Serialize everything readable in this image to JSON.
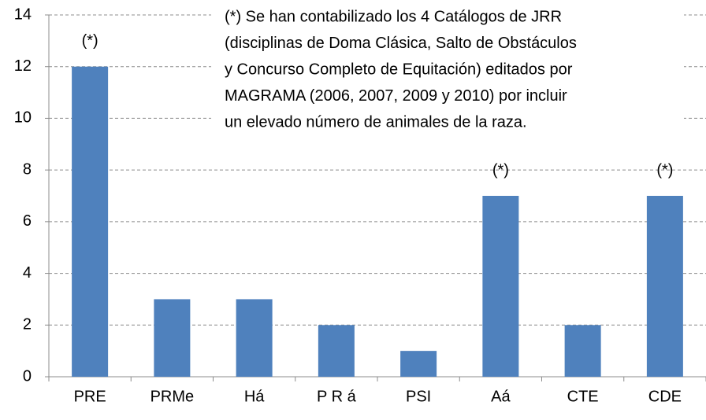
{
  "chart_data": {
    "type": "bar",
    "categories": [
      "PRE",
      "PRMe",
      "Há",
      "P R á",
      "PSI",
      "Aá",
      "CTE",
      "CDE"
    ],
    "values": [
      12,
      3,
      3,
      2,
      1,
      7,
      2,
      7
    ],
    "color": "#4f81bd",
    "ylim": [
      0,
      14
    ],
    "yticks": [
      0,
      2,
      4,
      6,
      8,
      10,
      12,
      14
    ],
    "grid": true,
    "annotations": [
      {
        "text": "(*)",
        "category": "PRE"
      },
      {
        "text": "(*)",
        "category": "Aá"
      },
      {
        "text": "(*)",
        "category": "CDE"
      }
    ],
    "note": [
      "(*) Se han contabilizado los 4 Catálogos de JRR",
      "(disciplinas de Doma Clásica, Salto de Obstáculos",
      "y Concurso Completo de Equitación) editados por",
      "MAGRAMA (2006, 2007, 2009 y 2010) por incluir",
      "un elevado número de animales de la raza."
    ]
  }
}
